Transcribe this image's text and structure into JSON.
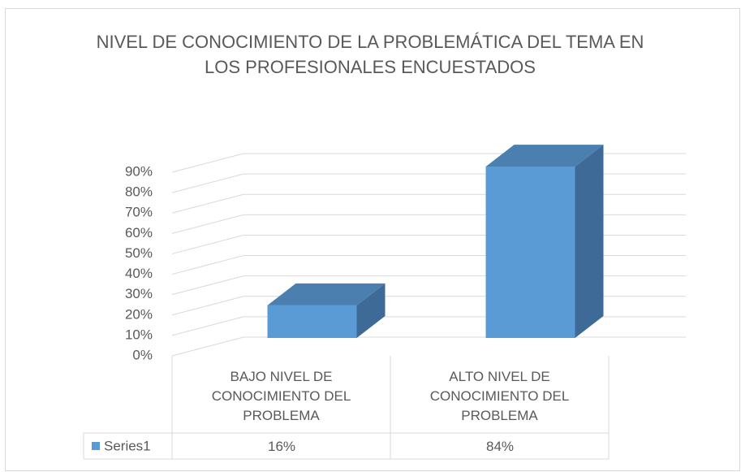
{
  "chart_data": {
    "type": "bar3d",
    "title": "NIVEL DE CONOCIMIENTO DE LA PROBLEMÁTICA DEL TEMA EN LOS PROFESIONALES ENCUESTADOS",
    "categories": [
      "BAJO NIVEL DE CONOCIMIENTO DEL PROBLEMA",
      "ALTO NIVEL DE CONOCIMIENTO DEL PROBLEMA"
    ],
    "series": [
      {
        "name": "Series1",
        "color": "#5b9bd5",
        "values": [
          16,
          84
        ],
        "value_labels": [
          "16%",
          "84%"
        ]
      }
    ],
    "ylim": [
      0,
      90
    ],
    "yticks": [
      {
        "value": 0,
        "label": "0%"
      },
      {
        "value": 10,
        "label": "10%"
      },
      {
        "value": 20,
        "label": "20%"
      },
      {
        "value": 30,
        "label": "30%"
      },
      {
        "value": 40,
        "label": "40%"
      },
      {
        "value": 50,
        "label": "50%"
      },
      {
        "value": 60,
        "label": "60%"
      },
      {
        "value": 70,
        "label": "70%"
      },
      {
        "value": 80,
        "label": "80%"
      },
      {
        "value": 90,
        "label": "90%"
      }
    ],
    "grid": true,
    "data_table": true
  }
}
